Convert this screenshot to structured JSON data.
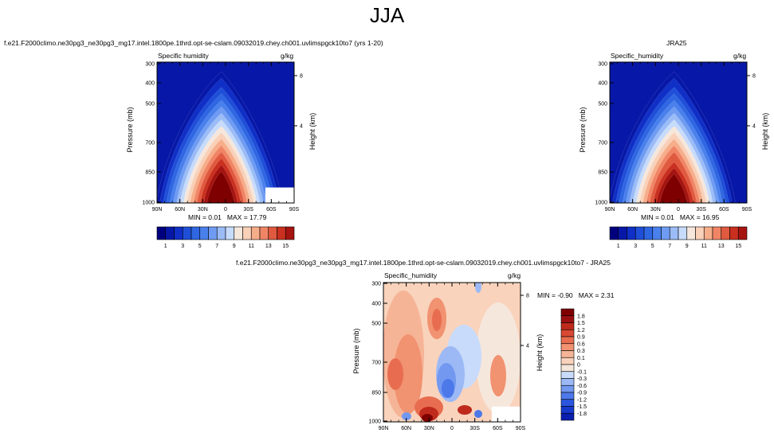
{
  "figure_title": "JJA",
  "colors": {
    "model_levels": [
      "#00007f",
      "#0718a8",
      "#0f2fc6",
      "#1f4fd8",
      "#2f66e2",
      "#4a80ec",
      "#6f9cf2",
      "#9bbcf6",
      "#c7dbfb",
      "#f6e7dc",
      "#f9d0b8",
      "#f6ad8a",
      "#f08565",
      "#e05a40",
      "#c9301f",
      "#a51410",
      "#7f0000"
    ],
    "diff_levels": [
      "#00007f",
      "#0a1fae",
      "#1638cc",
      "#2b55de",
      "#4c78ea",
      "#7298f0",
      "#9cb9f6",
      "#c8dbfb",
      "#f6e7dc",
      "#f9d3bc",
      "#f6b497",
      "#f19271",
      "#e86d50",
      "#d84832",
      "#bf2a1c",
      "#9a1010",
      "#7f0000"
    ]
  },
  "chart_data": [
    {
      "type": "heatmap",
      "panel": "model",
      "title": "f.e21.F2000climo.ne30pg3_ne30pg3_mg17.intel.1800pe.1thrd.opt-se-cslam.09032019.chey.ch001.uvlimspgck10to7 (yrs 1-20)",
      "variable": "Specific humidity",
      "units": "g/kg",
      "xlabel": "",
      "ylabel": "Pressure (mb)",
      "y2label": "Height (km)",
      "xticks": [
        "90N",
        "60N",
        "30N",
        "0",
        "30S",
        "60S",
        "90S"
      ],
      "yticks": [
        "300",
        "400",
        "500",
        "700",
        "850",
        "1000"
      ],
      "y2ticks": [
        "8",
        "4"
      ],
      "stats": {
        "min_label": "MIN =",
        "min": "0.01",
        "max_label": "MAX =",
        "max": "17.79"
      },
      "colorbar_labels": [
        "1",
        "3",
        "5",
        "7",
        "9",
        "11",
        "13",
        "15"
      ]
    },
    {
      "type": "heatmap",
      "panel": "obs",
      "title": "JRA25",
      "variable": "Specific_humidity",
      "units": "g/kg",
      "xlabel": "",
      "ylabel": "Pressure (mb)",
      "y2label": "Height (km)",
      "xticks": [
        "90N",
        "60N",
        "30N",
        "0",
        "30S",
        "60S",
        "90S"
      ],
      "yticks": [
        "300",
        "400",
        "500",
        "700",
        "850",
        "1000"
      ],
      "y2ticks": [
        "8",
        "4"
      ],
      "stats": {
        "min_label": "MIN =",
        "min": "0.01",
        "max_label": "MAX =",
        "max": "16.95"
      },
      "colorbar_labels": [
        "1",
        "3",
        "5",
        "7",
        "9",
        "11",
        "13",
        "15"
      ]
    },
    {
      "type": "heatmap",
      "panel": "difference",
      "title": "f.e21.F2000climo.ne30pg3_ne30pg3_mg17.intel.1800pe.1thrd.opt-se-cslam.09032019.chey.ch001.uvlimspgck10to7 - JRA25",
      "variable": "Specific_humidity",
      "units": "g/kg",
      "xlabel": "",
      "ylabel": "Pressure (mb)",
      "y2label": "Height (km)",
      "xticks": [
        "90N",
        "60N",
        "30N",
        "0",
        "30S",
        "60S",
        "90S"
      ],
      "yticks": [
        "300",
        "400",
        "500",
        "700",
        "850",
        "1000"
      ],
      "y2ticks": [
        "8",
        "4"
      ],
      "stats": {
        "min_label": "MIN =",
        "min": "-0.90",
        "max_label": "MAX =",
        "max": "2.31"
      },
      "colorbar_labels": [
        "1.8",
        "1.5",
        "1.2",
        "0.9",
        "0.6",
        "0.3",
        "0.1",
        "0",
        "-0.1",
        "-0.3",
        "-0.6",
        "-0.9",
        "-1.2",
        "-1.5",
        "-1.8"
      ]
    }
  ]
}
